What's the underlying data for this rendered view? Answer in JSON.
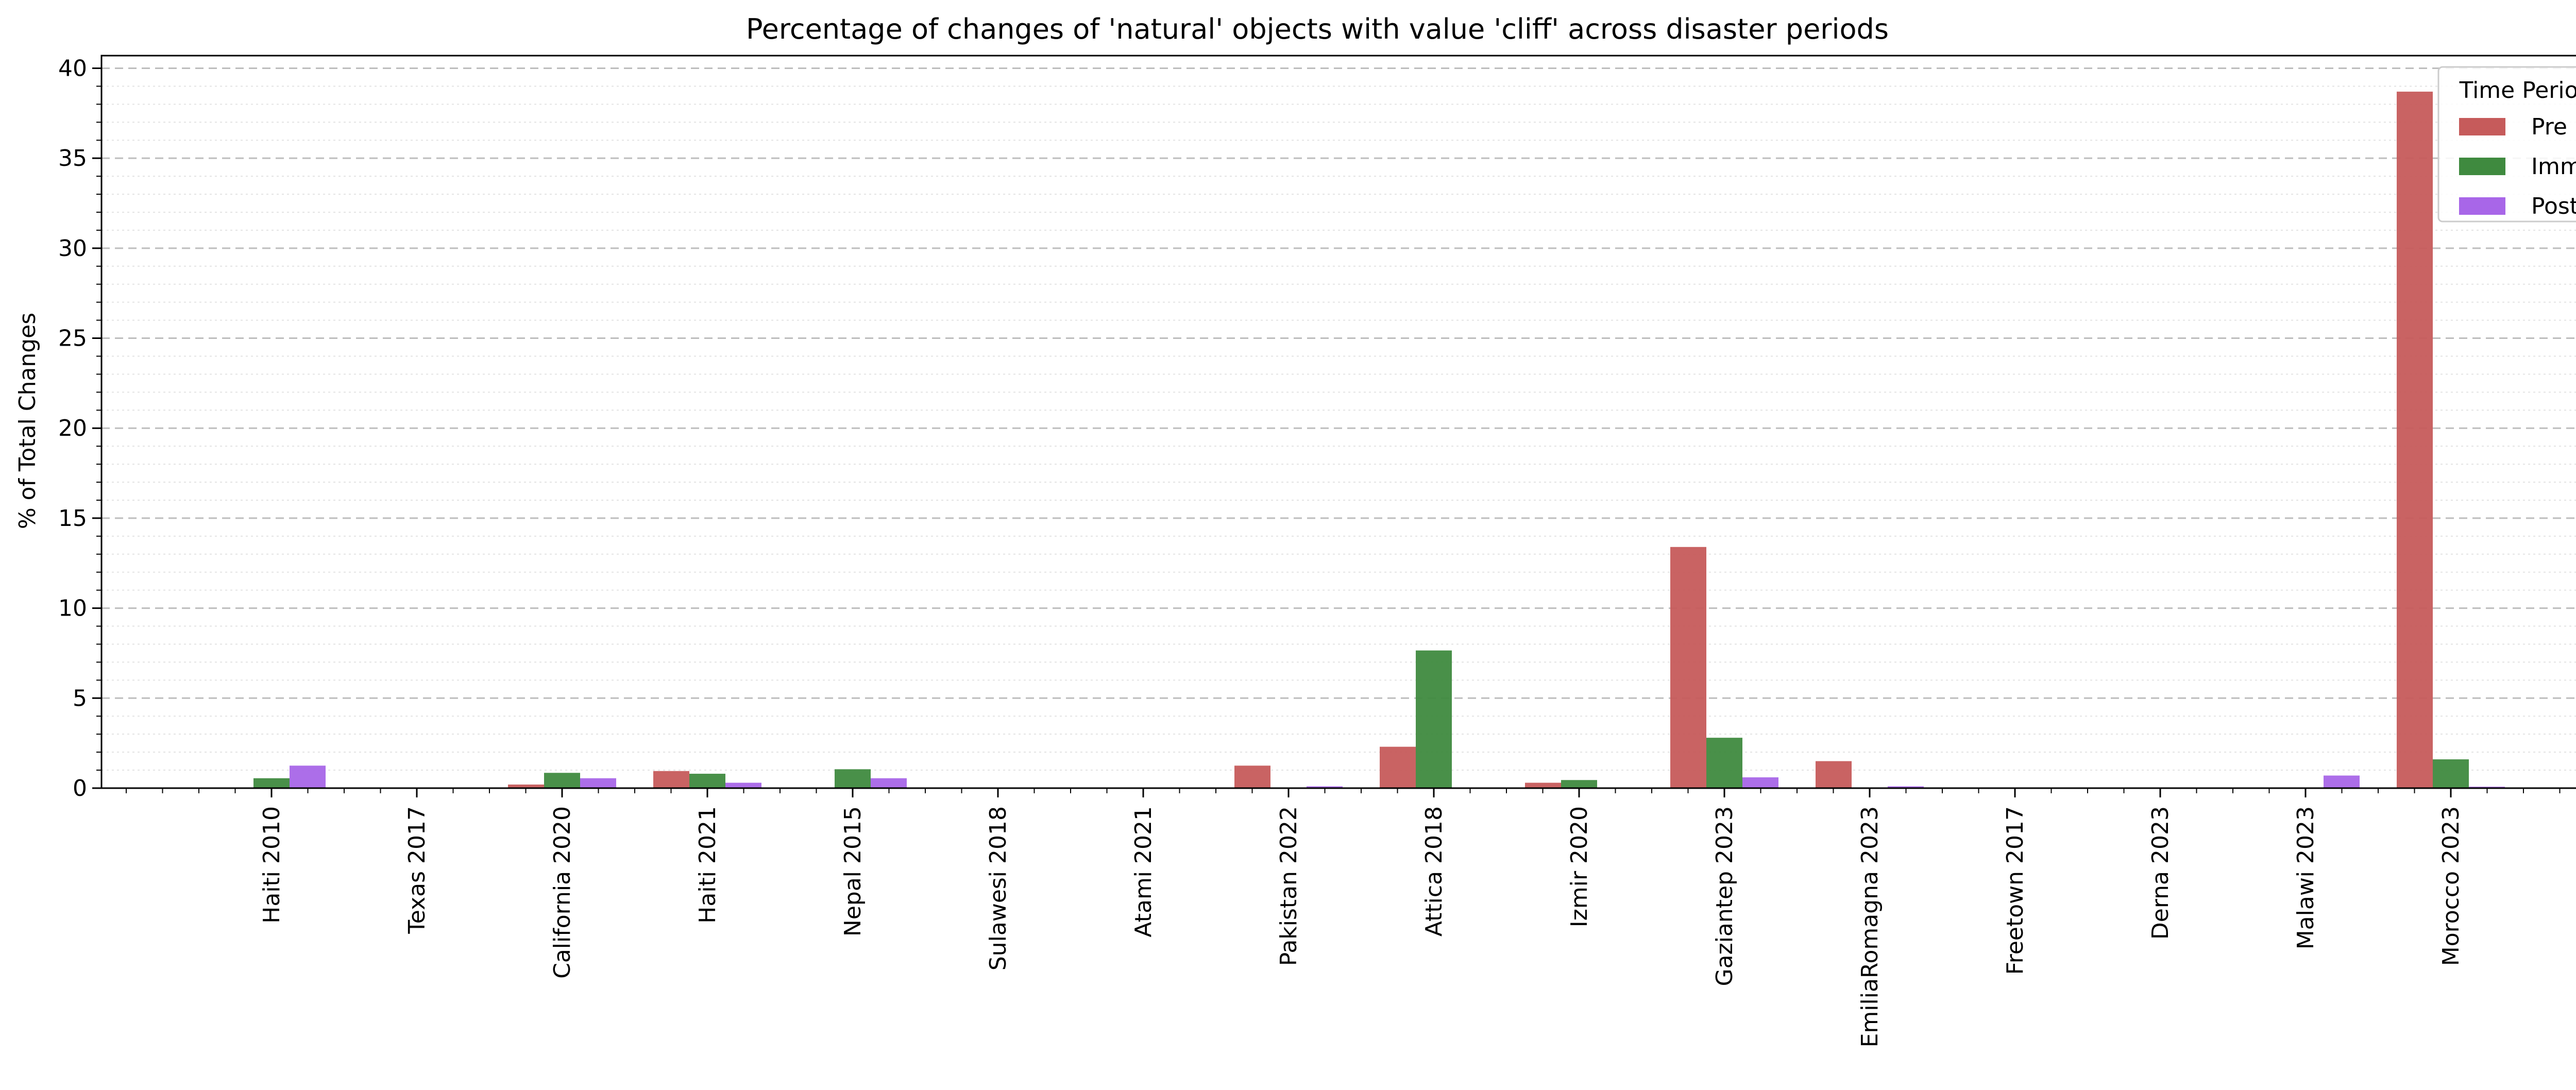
{
  "chart_data": {
    "type": "bar",
    "title": "Percentage of changes of 'natural' objects with value 'cliff' across disaster periods",
    "xlabel": "",
    "ylabel": "% of Total Changes",
    "ylim": [
      0,
      40.7
    ],
    "yticks": [
      0,
      5,
      10,
      15,
      20,
      25,
      30,
      35,
      40
    ],
    "grid": true,
    "legend_title": "Time Period",
    "legend_position": "top-right",
    "categories": [
      "Haiti 2010",
      "Texas 2017",
      "California 2020",
      "Haiti 2021",
      "Nepal 2015",
      "Sulawesi 2018",
      "Atami 2021",
      "Pakistan 2022",
      "Attica 2018",
      "Izmir 2020",
      "Gaziantep 2023",
      "EmiliaRomagna 2023",
      "Freetown 2017",
      "Derna 2023",
      "Malawi 2023",
      "Morocco 2023"
    ],
    "series": [
      {
        "name": "Pre",
        "color": "#c65b5b",
        "values": [
          0,
          0,
          0.2,
          0.95,
          0,
          0,
          0,
          1.25,
          2.3,
          0.3,
          13.4,
          1.5,
          0,
          0,
          0,
          38.7
        ]
      },
      {
        "name": "Imm",
        "color": "#3f8a3f",
        "values": [
          0.55,
          0,
          0.85,
          0.8,
          1.05,
          0,
          0,
          0,
          7.65,
          0.45,
          2.8,
          0,
          0,
          0,
          0,
          1.6
        ]
      },
      {
        "name": "Post",
        "color": "#a866e8",
        "values": [
          1.25,
          0,
          0.55,
          0.3,
          0.55,
          0,
          0,
          0.1,
          0,
          0,
          0.6,
          0.1,
          0,
          0,
          0.7,
          0.08
        ]
      }
    ]
  }
}
